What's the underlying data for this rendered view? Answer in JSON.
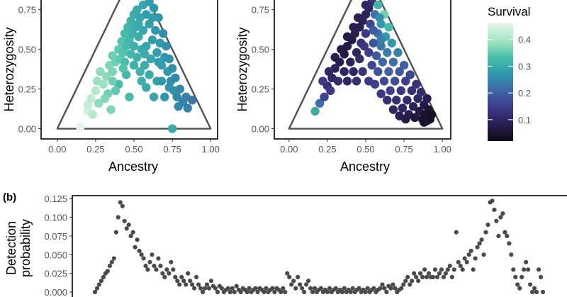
{
  "panel_b_letter": "(b)",
  "legend": {
    "title": "Survival",
    "ticks": [
      "0.4",
      "0.3",
      "0.2",
      "0.1"
    ],
    "tick_values": [
      0.4,
      0.3,
      0.2,
      0.1
    ],
    "range": [
      0.02,
      0.46
    ],
    "colors": [
      "#0c0a12",
      "#2a1f52",
      "#3d3c8b",
      "#3f66a6",
      "#2f99ac",
      "#49c0a8",
      "#a6e6c4",
      "#e4f6e8"
    ]
  },
  "chart_data": [
    {
      "type": "scatter",
      "xlabel": "Ancestry",
      "ylabel": "Heterozygosity",
      "xlim": [
        -0.05,
        1.05
      ],
      "ylim": [
        -0.02,
        0.78
      ],
      "x_ticks": [
        "0.00",
        "0.25",
        "0.50",
        "0.75",
        "1.00"
      ],
      "y_ticks": [
        "0.00",
        "0.25",
        "0.50",
        "0.75"
      ],
      "triangle": [
        [
          0,
          0
        ],
        [
          0.5,
          1
        ],
        [
          1,
          0
        ]
      ],
      "color_by": "Survival",
      "points": [
        [
          0.15,
          0.01,
          0.46
        ],
        [
          0.2,
          0.11,
          0.44
        ],
        [
          0.2,
          0.15,
          0.43
        ],
        [
          0.22,
          0.19,
          0.42
        ],
        [
          0.25,
          0.24,
          0.41
        ],
        [
          0.26,
          0.3,
          0.39
        ],
        [
          0.3,
          0.28,
          0.39
        ],
        [
          0.28,
          0.36,
          0.38
        ],
        [
          0.32,
          0.33,
          0.38
        ],
        [
          0.34,
          0.4,
          0.37
        ],
        [
          0.36,
          0.36,
          0.37
        ],
        [
          0.36,
          0.46,
          0.36
        ],
        [
          0.38,
          0.42,
          0.36
        ],
        [
          0.4,
          0.5,
          0.35
        ],
        [
          0.41,
          0.44,
          0.35
        ],
        [
          0.42,
          0.55,
          0.34
        ],
        [
          0.43,
          0.48,
          0.34
        ],
        [
          0.44,
          0.6,
          0.33
        ],
        [
          0.45,
          0.52,
          0.33
        ],
        [
          0.46,
          0.64,
          0.32
        ],
        [
          0.47,
          0.56,
          0.32
        ],
        [
          0.48,
          0.68,
          0.31
        ],
        [
          0.49,
          0.6,
          0.31
        ],
        [
          0.5,
          0.72,
          0.3
        ],
        [
          0.5,
          0.52,
          0.31
        ],
        [
          0.51,
          0.64,
          0.3
        ],
        [
          0.52,
          0.75,
          0.3
        ],
        [
          0.52,
          0.45,
          0.31
        ],
        [
          0.53,
          0.58,
          0.3
        ],
        [
          0.54,
          0.7,
          0.29
        ],
        [
          0.55,
          0.5,
          0.3
        ],
        [
          0.56,
          0.78,
          0.29
        ],
        [
          0.56,
          0.62,
          0.29
        ],
        [
          0.57,
          0.4,
          0.3
        ],
        [
          0.58,
          0.72,
          0.28
        ],
        [
          0.58,
          0.52,
          0.29
        ],
        [
          0.6,
          0.8,
          0.28
        ],
        [
          0.6,
          0.66,
          0.28
        ],
        [
          0.61,
          0.44,
          0.29
        ],
        [
          0.62,
          0.56,
          0.28
        ],
        [
          0.63,
          0.76,
          0.27
        ],
        [
          0.64,
          0.62,
          0.27
        ],
        [
          0.65,
          0.48,
          0.28
        ],
        [
          0.66,
          0.7,
          0.27
        ],
        [
          0.67,
          0.54,
          0.27
        ],
        [
          0.68,
          0.4,
          0.28
        ],
        [
          0.69,
          0.6,
          0.26
        ],
        [
          0.7,
          0.45,
          0.27
        ],
        [
          0.71,
          0.52,
          0.26
        ],
        [
          0.72,
          0.36,
          0.27
        ],
        [
          0.73,
          0.44,
          0.26
        ],
        [
          0.74,
          0.3,
          0.26
        ],
        [
          0.75,
          0.38,
          0.26
        ],
        [
          0.76,
          0.24,
          0.26
        ],
        [
          0.77,
          0.32,
          0.25
        ],
        [
          0.78,
          0.2,
          0.25
        ],
        [
          0.8,
          0.25,
          0.25
        ],
        [
          0.82,
          0.17,
          0.24
        ],
        [
          0.84,
          0.2,
          0.24
        ],
        [
          0.85,
          0.13,
          0.24
        ],
        [
          0.75,
          0.0,
          0.3
        ],
        [
          0.55,
          0.3,
          0.31
        ],
        [
          0.45,
          0.34,
          0.32
        ],
        [
          0.6,
          0.34,
          0.3
        ],
        [
          0.4,
          0.28,
          0.33
        ],
        [
          0.5,
          0.4,
          0.31
        ],
        [
          0.65,
          0.3,
          0.29
        ],
        [
          0.33,
          0.22,
          0.36
        ],
        [
          0.7,
          0.2,
          0.27
        ],
        [
          0.27,
          0.16,
          0.38
        ],
        [
          0.47,
          0.2,
          0.33
        ],
        [
          0.63,
          0.2,
          0.29
        ],
        [
          0.38,
          0.24,
          0.35
        ],
        [
          0.58,
          0.26,
          0.3
        ],
        [
          0.68,
          0.3,
          0.27
        ],
        [
          0.44,
          0.42,
          0.33
        ],
        [
          0.54,
          0.36,
          0.31
        ],
        [
          0.35,
          0.12,
          0.37
        ],
        [
          0.53,
          0.66,
          0.3
        ],
        [
          0.62,
          0.7,
          0.28
        ],
        [
          0.57,
          0.47,
          0.3
        ],
        [
          0.66,
          0.42,
          0.28
        ],
        [
          0.48,
          0.47,
          0.32
        ],
        [
          0.43,
          0.38,
          0.34
        ],
        [
          0.73,
          0.26,
          0.26
        ],
        [
          0.79,
          0.14,
          0.25
        ],
        [
          0.88,
          0.18,
          0.23
        ],
        [
          0.31,
          0.19,
          0.37
        ],
        [
          0.23,
          0.09,
          0.41
        ],
        [
          0.36,
          0.3,
          0.36
        ]
      ]
    },
    {
      "type": "scatter",
      "xlabel": "Ancestry",
      "ylabel": "Heterozygosity",
      "xlim": [
        -0.05,
        1.05
      ],
      "ylim": [
        -0.02,
        0.78
      ],
      "x_ticks": [
        "0.00",
        "0.25",
        "0.50",
        "0.75",
        "1.00"
      ],
      "y_ticks": [
        "0.00",
        "0.25",
        "0.50",
        "0.75"
      ],
      "triangle": [
        [
          0,
          0
        ],
        [
          0.5,
          1
        ],
        [
          1,
          0
        ]
      ],
      "color_by": "Survival",
      "points": [
        [
          0.17,
          0.11,
          0.3
        ],
        [
          0.2,
          0.16,
          0.22
        ],
        [
          0.23,
          0.2,
          0.16
        ],
        [
          0.25,
          0.27,
          0.12
        ],
        [
          0.28,
          0.32,
          0.1
        ],
        [
          0.3,
          0.38,
          0.09
        ],
        [
          0.33,
          0.42,
          0.08
        ],
        [
          0.36,
          0.47,
          0.07
        ],
        [
          0.38,
          0.52,
          0.07
        ],
        [
          0.41,
          0.56,
          0.07
        ],
        [
          0.43,
          0.6,
          0.08
        ],
        [
          0.46,
          0.64,
          0.08
        ],
        [
          0.48,
          0.68,
          0.09
        ],
        [
          0.5,
          0.72,
          0.09
        ],
        [
          0.52,
          0.76,
          0.1
        ],
        [
          0.54,
          0.8,
          0.12
        ],
        [
          0.22,
          0.3,
          0.14
        ],
        [
          0.26,
          0.36,
          0.1
        ],
        [
          0.3,
          0.45,
          0.08
        ],
        [
          0.34,
          0.5,
          0.07
        ],
        [
          0.38,
          0.58,
          0.07
        ],
        [
          0.42,
          0.64,
          0.08
        ],
        [
          0.45,
          0.7,
          0.09
        ],
        [
          0.5,
          0.78,
          0.1
        ],
        [
          0.27,
          0.24,
          0.14
        ],
        [
          0.32,
          0.3,
          0.11
        ],
        [
          0.36,
          0.36,
          0.1
        ],
        [
          0.4,
          0.42,
          0.09
        ],
        [
          0.44,
          0.48,
          0.1
        ],
        [
          0.47,
          0.54,
          0.12
        ],
        [
          0.5,
          0.6,
          0.14
        ],
        [
          0.53,
          0.66,
          0.16
        ],
        [
          0.56,
          0.72,
          0.22
        ],
        [
          0.58,
          0.78,
          0.32
        ],
        [
          0.52,
          0.48,
          0.15
        ],
        [
          0.55,
          0.54,
          0.18
        ],
        [
          0.58,
          0.6,
          0.22
        ],
        [
          0.6,
          0.66,
          0.28
        ],
        [
          0.62,
          0.72,
          0.36
        ],
        [
          0.54,
          0.4,
          0.16
        ],
        [
          0.57,
          0.46,
          0.19
        ],
        [
          0.6,
          0.52,
          0.23
        ],
        [
          0.63,
          0.58,
          0.27
        ],
        [
          0.65,
          0.64,
          0.33
        ],
        [
          0.58,
          0.36,
          0.18
        ],
        [
          0.61,
          0.42,
          0.21
        ],
        [
          0.64,
          0.48,
          0.24
        ],
        [
          0.67,
          0.54,
          0.27
        ],
        [
          0.62,
          0.3,
          0.17
        ],
        [
          0.65,
          0.36,
          0.2
        ],
        [
          0.68,
          0.42,
          0.22
        ],
        [
          0.71,
          0.48,
          0.24
        ],
        [
          0.66,
          0.24,
          0.15
        ],
        [
          0.69,
          0.3,
          0.17
        ],
        [
          0.72,
          0.36,
          0.19
        ],
        [
          0.75,
          0.4,
          0.2
        ],
        [
          0.7,
          0.18,
          0.12
        ],
        [
          0.73,
          0.24,
          0.14
        ],
        [
          0.76,
          0.3,
          0.15
        ],
        [
          0.79,
          0.34,
          0.16
        ],
        [
          0.74,
          0.13,
          0.1
        ],
        [
          0.77,
          0.18,
          0.11
        ],
        [
          0.8,
          0.24,
          0.12
        ],
        [
          0.83,
          0.28,
          0.13
        ],
        [
          0.78,
          0.09,
          0.08
        ],
        [
          0.81,
          0.14,
          0.09
        ],
        [
          0.84,
          0.19,
          0.1
        ],
        [
          0.86,
          0.23,
          0.11
        ],
        [
          0.82,
          0.07,
          0.06
        ],
        [
          0.85,
          0.11,
          0.07
        ],
        [
          0.88,
          0.15,
          0.07
        ],
        [
          0.9,
          0.19,
          0.08
        ],
        [
          0.87,
          0.06,
          0.05
        ],
        [
          0.89,
          0.09,
          0.05
        ],
        [
          0.91,
          0.12,
          0.05
        ],
        [
          0.92,
          0.06,
          0.04
        ],
        [
          0.9,
          0.05,
          0.04
        ],
        [
          0.93,
          0.09,
          0.04
        ],
        [
          0.88,
          0.04,
          0.05
        ],
        [
          0.46,
          0.44,
          0.11
        ],
        [
          0.42,
          0.36,
          0.1
        ],
        [
          0.38,
          0.3,
          0.1
        ],
        [
          0.48,
          0.36,
          0.13
        ],
        [
          0.44,
          0.3,
          0.12
        ],
        [
          0.52,
          0.3,
          0.14
        ],
        [
          0.56,
          0.28,
          0.15
        ],
        [
          0.6,
          0.22,
          0.14
        ],
        [
          0.64,
          0.18,
          0.12
        ],
        [
          0.68,
          0.12,
          0.1
        ],
        [
          0.72,
          0.08,
          0.08
        ],
        [
          0.76,
          0.06,
          0.07
        ],
        [
          0.55,
          0.62,
          0.19
        ],
        [
          0.59,
          0.7,
          0.26
        ],
        [
          0.57,
          0.84,
          0.38
        ],
        [
          0.6,
          0.56,
          0.24
        ],
        [
          0.49,
          0.52,
          0.13
        ]
      ]
    },
    {
      "type": "scatter",
      "xlabel": "",
      "ylabel": "Detection probability",
      "ylabel_lines": [
        "Detection",
        "probability"
      ],
      "ylim": [
        0,
        0.128
      ],
      "y_ticks": [
        "0.000",
        "0.025",
        "0.050",
        "0.075",
        "0.100",
        "0.125"
      ],
      "y": [
        0.0,
        0.005,
        0.01,
        0.015,
        0.02,
        0.025,
        0.028,
        0.035,
        0.04,
        0.045,
        0.08,
        0.1,
        0.12,
        0.115,
        0.095,
        0.085,
        0.09,
        0.075,
        0.08,
        0.06,
        0.07,
        0.055,
        0.05,
        0.045,
        0.035,
        0.03,
        0.04,
        0.05,
        0.035,
        0.03,
        0.045,
        0.035,
        0.025,
        0.02,
        0.03,
        0.025,
        0.04,
        0.03,
        0.02,
        0.015,
        0.01,
        0.02,
        0.015,
        0.01,
        0.025,
        0.015,
        0.01,
        0.005,
        0.02,
        0.01,
        0.005,
        0.0,
        0.005,
        0.01,
        0.005,
        0.015,
        0.008,
        0.005,
        0.0,
        0.008,
        0.005,
        0.0,
        0.003,
        0.005,
        0.0,
        0.005,
        0.0,
        0.008,
        0.003,
        0.0,
        0.005,
        0.003,
        0.0,
        0.005,
        0.0,
        0.003,
        0.005,
        0.0,
        0.005,
        0.003,
        0.0,
        0.005,
        0.0,
        0.003,
        0.005,
        0.0,
        0.005,
        0.003,
        0.0,
        0.005,
        0.0,
        0.025,
        0.02,
        0.01,
        0.015,
        0.005,
        0.02,
        0.01,
        0.005,
        0.0,
        0.01,
        0.015,
        0.005,
        0.0,
        0.005,
        0.0,
        0.003,
        0.005,
        0.0,
        0.003,
        0.0,
        0.005,
        0.0,
        0.003,
        0.005,
        0.0,
        0.003,
        0.0,
        0.005,
        0.0,
        0.003,
        0.0,
        0.005,
        0.0,
        0.003,
        0.005,
        0.0,
        0.003,
        0.0,
        0.005,
        0.0,
        0.003,
        0.005,
        0.0,
        0.003,
        0.005,
        0.01,
        0.005,
        0.0,
        0.008,
        0.005,
        0.01,
        0.005,
        0.0,
        0.003,
        0.005,
        0.01,
        0.015,
        0.02,
        0.01,
        0.015,
        0.025,
        0.02,
        0.015,
        0.025,
        0.02,
        0.03,
        0.02,
        0.025,
        0.02,
        0.02,
        0.03,
        0.02,
        0.025,
        0.03,
        0.02,
        0.025,
        0.03,
        0.035,
        0.02,
        0.03,
        0.08,
        0.04,
        0.035,
        0.03,
        0.045,
        0.04,
        0.05,
        0.055,
        0.03,
        0.045,
        0.06,
        0.065,
        0.07,
        0.05,
        0.08,
        0.09,
        0.12,
        0.122,
        0.11,
        0.095,
        0.075,
        0.1,
        0.105,
        0.08,
        0.075,
        0.065,
        0.05,
        0.03,
        0.02,
        0.01,
        0.005,
        0.02,
        0.03,
        0.04,
        0.03,
        0.01,
        0.0,
        0.005,
        0.0,
        0.03,
        0.02,
        0.0
      ]
    }
  ]
}
